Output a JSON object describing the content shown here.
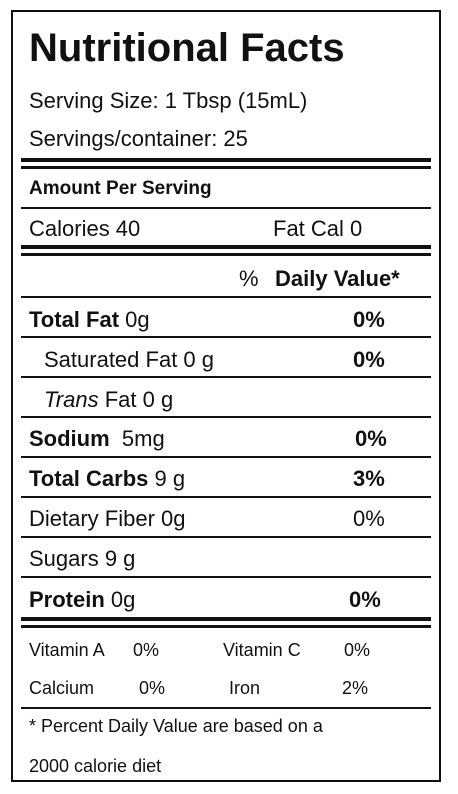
{
  "title": "Nutritional Facts",
  "serving_size": "Serving Size: 1 Tbsp (15mL)",
  "servings_per_container": "Servings/container:  25",
  "amount_per_serving": "Amount Per Serving",
  "calories": "Calories 40",
  "fat_cal": "Fat Cal  0",
  "dv_header": {
    "symbol": "%",
    "label": "Daily Value*"
  },
  "nutrients": {
    "total_fat": {
      "label": "Total Fat",
      "amount": "0g",
      "dv": "0%"
    },
    "saturated_fat": {
      "label": "Saturated Fat  0 g",
      "dv": "0%"
    },
    "trans_fat": {
      "label_italic": "Trans",
      "rest": "Fat 0 g"
    },
    "sodium": {
      "label": "Sodium",
      "amount": "5mg",
      "dv": "0%"
    },
    "total_carbs": {
      "label": "Total Carbs",
      "amount": "9 g",
      "dv": "3%"
    },
    "dietary_fiber": {
      "label": "Dietary Fiber 0g",
      "dv": "0%"
    },
    "sugars": {
      "label": "Sugars 9 g"
    },
    "protein": {
      "label": "Protein",
      "amount": "0g",
      "dv": "0%"
    }
  },
  "vitamins": {
    "vitamin_a": {
      "label": "Vitamin A",
      "value": "0%"
    },
    "vitamin_c": {
      "label": "Vitamin C",
      "value": "0%"
    },
    "calcium": {
      "label": "Calcium",
      "value": "0%"
    },
    "iron": {
      "label": "Iron",
      "value": "2%"
    }
  },
  "footnote": {
    "line1": "* Percent Daily Value are based on a",
    "line2": "2000 calorie diet"
  }
}
